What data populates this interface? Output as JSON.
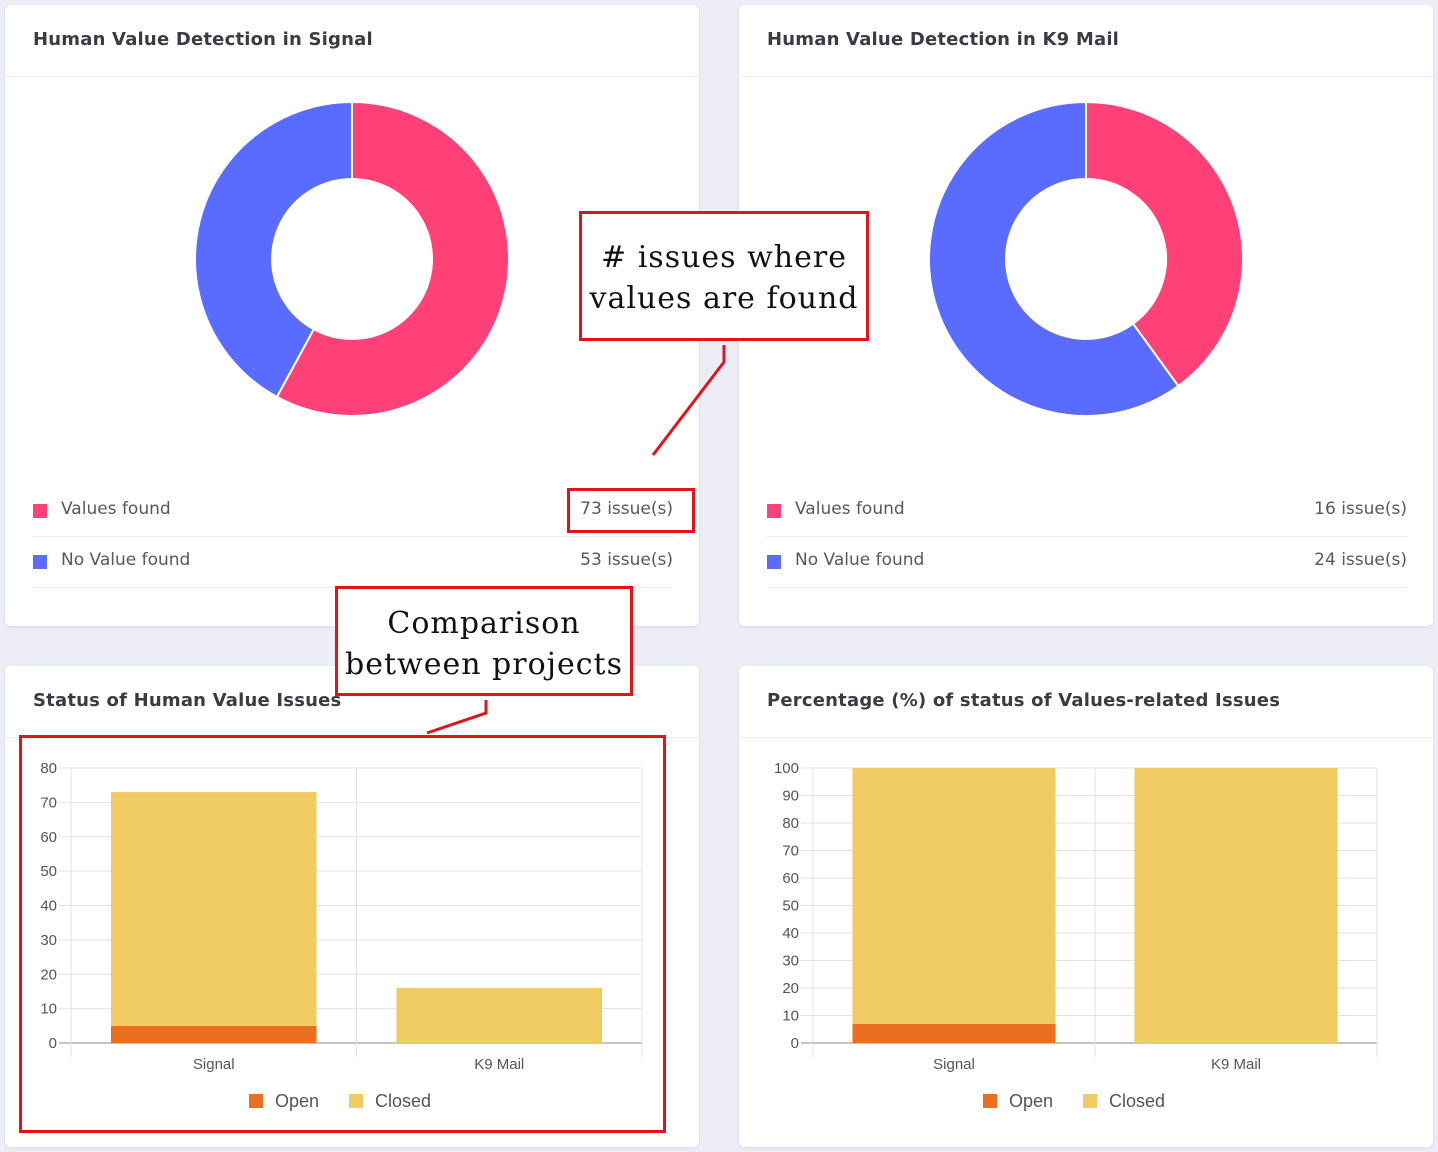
{
  "colors": {
    "values_found": "#ff4178",
    "no_value_found": "#5a6bff",
    "open": "#ea6f1f",
    "closed": "#f0cb63",
    "annotation": "#e3131b"
  },
  "cards": {
    "signal": {
      "title": "Human Value Detection in Signal",
      "legend": [
        {
          "label": "Values found",
          "value": "73 issue(s)"
        },
        {
          "label": "No Value found",
          "value": "53 issue(s)"
        }
      ]
    },
    "k9": {
      "title": "Human Value Detection in K9 Mail",
      "legend": [
        {
          "label": "Values found",
          "value": "16 issue(s)"
        },
        {
          "label": "No Value found",
          "value": "24 issue(s)"
        }
      ]
    },
    "status": {
      "title": "Status of Human Value Issues"
    },
    "percent": {
      "title": "Percentage (%) of status of Values-related Issues"
    }
  },
  "annotations": {
    "issues_found": [
      "# issues where",
      "values are found"
    ],
    "comparison": [
      "Comparison",
      "between projects"
    ]
  },
  "chart_data": [
    {
      "type": "pie",
      "title": "Human Value Detection in Signal",
      "labels": [
        "Values found",
        "No Value found"
      ],
      "values": [
        73,
        53
      ]
    },
    {
      "type": "pie",
      "title": "Human Value Detection in K9 Mail",
      "labels": [
        "Values found",
        "No Value found"
      ],
      "values": [
        16,
        24
      ]
    },
    {
      "type": "bar",
      "stacked": true,
      "title": "Status of Human Value Issues",
      "categories": [
        "Signal",
        "K9 Mail"
      ],
      "series": [
        {
          "name": "Open",
          "values": [
            5,
            0
          ]
        },
        {
          "name": "Closed",
          "values": [
            68,
            16
          ]
        }
      ],
      "ylim": [
        0,
        80
      ],
      "yticks": [
        0,
        10,
        20,
        30,
        40,
        50,
        60,
        70,
        80
      ],
      "legend": "bottom"
    },
    {
      "type": "bar",
      "stacked": true,
      "title": "Percentage (%) of status of Values-related Issues",
      "categories": [
        "Signal",
        "K9 Mail"
      ],
      "series": [
        {
          "name": "Open",
          "values": [
            7,
            0
          ]
        },
        {
          "name": "Closed",
          "values": [
            93,
            100
          ]
        }
      ],
      "ylim": [
        0,
        100
      ],
      "yticks": [
        0,
        10,
        20,
        30,
        40,
        50,
        60,
        70,
        80,
        90,
        100
      ],
      "legend": "bottom"
    }
  ]
}
